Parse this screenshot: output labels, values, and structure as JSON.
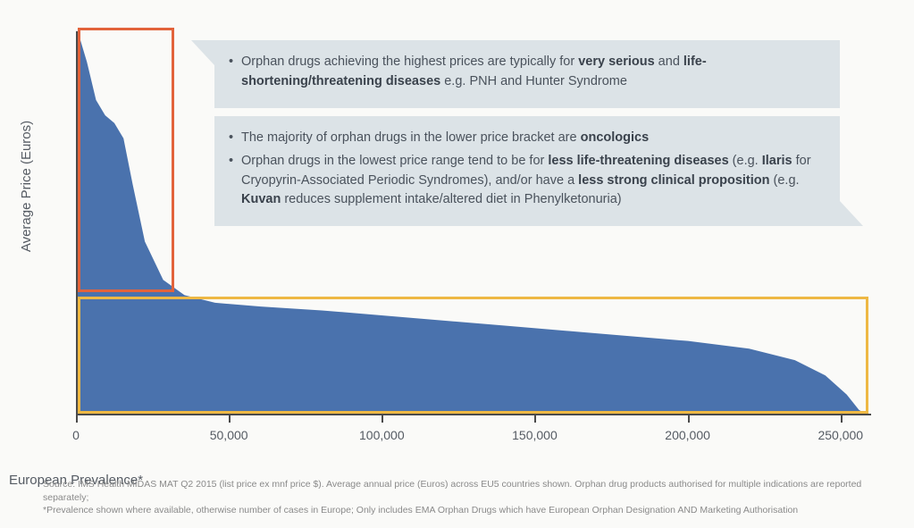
{
  "chart": {
    "type": "area",
    "background_color": "#fafaf8",
    "area_fill_color": "#4a72ad",
    "axis_color": "#4a4a4a",
    "text_color": "#555b63",
    "ylabel": "Average Price (Euros)",
    "xlabel": "European Prevalence*",
    "label_fontsize": 15,
    "tick_fontsize": 14,
    "xlim": [
      0,
      260000
    ],
    "xtick_step": 50000,
    "xticks": [
      {
        "value": 0,
        "label": "0"
      },
      {
        "value": 50000,
        "label": "50,000"
      },
      {
        "value": 100000,
        "label": "100,000"
      },
      {
        "value": 150000,
        "label": "150,000"
      },
      {
        "value": 200000,
        "label": "200,000"
      },
      {
        "value": 250000,
        "label": "250,000"
      }
    ],
    "ylim": [
      0,
      100
    ],
    "curve_points": [
      {
        "x": 0,
        "y": 100
      },
      {
        "x": 3000,
        "y": 92
      },
      {
        "x": 6000,
        "y": 82
      },
      {
        "x": 9000,
        "y": 78
      },
      {
        "x": 12000,
        "y": 76
      },
      {
        "x": 15000,
        "y": 72
      },
      {
        "x": 18000,
        "y": 60
      },
      {
        "x": 22000,
        "y": 45
      },
      {
        "x": 28000,
        "y": 35
      },
      {
        "x": 35000,
        "y": 31
      },
      {
        "x": 45000,
        "y": 29
      },
      {
        "x": 60000,
        "y": 28
      },
      {
        "x": 80000,
        "y": 27
      },
      {
        "x": 110000,
        "y": 25
      },
      {
        "x": 140000,
        "y": 23
      },
      {
        "x": 170000,
        "y": 21
      },
      {
        "x": 200000,
        "y": 19
      },
      {
        "x": 220000,
        "y": 17
      },
      {
        "x": 235000,
        "y": 14
      },
      {
        "x": 245000,
        "y": 10
      },
      {
        "x": 252000,
        "y": 5
      },
      {
        "x": 256000,
        "y": 1
      },
      {
        "x": 258000,
        "y": 0
      }
    ]
  },
  "highlights": {
    "red_box": {
      "color": "#e2633b",
      "x_start": 500,
      "x_end": 32000,
      "y_start": 32,
      "y_end": 101,
      "border_width": 3
    },
    "yellow_box": {
      "color": "#eeb844",
      "x_start": 500,
      "x_end": 259000,
      "y_start": 0.5,
      "y_end": 31,
      "border_width": 3
    }
  },
  "callouts": {
    "top": {
      "background": "#dce3e7",
      "text_color": "#4a525c",
      "fontsize": 14.5,
      "items": [
        {
          "pre": "Orphan drugs achieving the highest prices are typically for ",
          "b1": "very serious",
          "mid": " and ",
          "b2": "life-shortening/threatening diseases",
          "post": " e.g. PNH and Hunter Syndrome"
        }
      ]
    },
    "bottom": {
      "background": "#dce3e7",
      "items": [
        {
          "pre": "The majority of orphan drugs in the lower price bracket are ",
          "b1": "oncologics",
          "mid": "",
          "b2": "",
          "post": ""
        },
        {
          "pre": "Orphan drugs in the lowest price range tend to be for ",
          "b1": "less life-threatening diseases",
          "mid": " (e.g. ",
          "b2": "Ilaris",
          "post": " for Cryopyrin-Associated Periodic Syndromes), and/or have a ",
          "b3": "less strong clinical proposition",
          "post2": " (e.g. ",
          "b4": "Kuvan",
          "post3": " reduces supplement intake/altered diet in Phenylketonuria)"
        }
      ]
    }
  },
  "footnote": {
    "line1": "Source: IMS Health MIDAS MAT Q2 2015 (list price ex mnf price $). Average annual price (Euros) across EU5 countries shown. Orphan drug products authorised for multiple indications are reported separately;",
    "line2": "*Prevalence shown where available, otherwise number of cases in Europe; Only includes EMA Orphan Drugs which have European Orphan Designation AND Marketing Authorisation",
    "fontsize": 10.5,
    "color": "#8a8a8a"
  }
}
